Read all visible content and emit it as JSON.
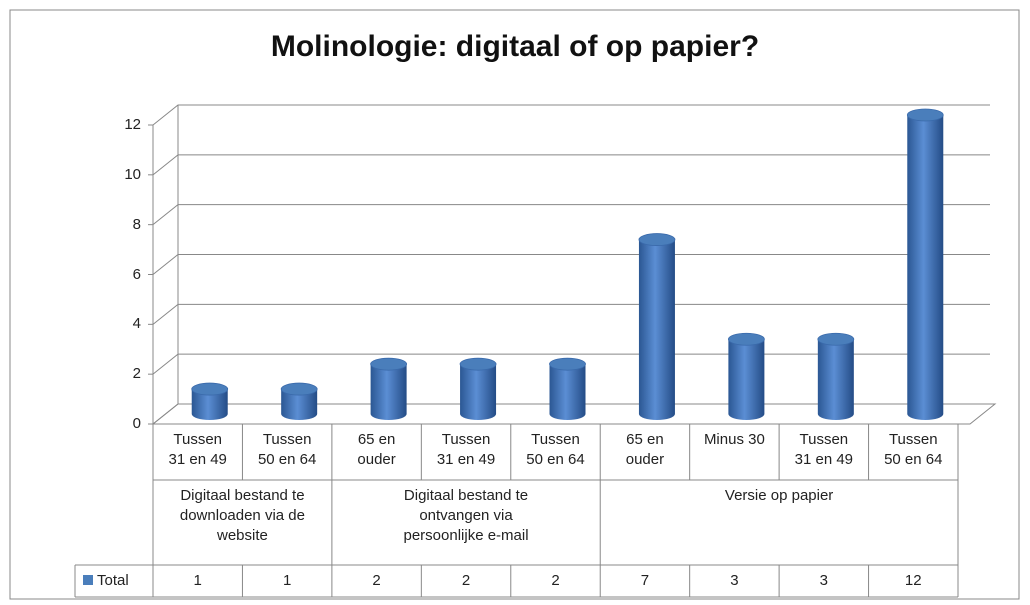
{
  "chart_data": {
    "type": "bar3d",
    "title": "Molinologie: digitaal of op papier?",
    "groups": [
      {
        "name": "Digitaal bestand te downloaden via de website",
        "categories": [
          "Tussen 31 en 49",
          "Tussen 50 en 64"
        ]
      },
      {
        "name": "Digitaal bestand te ontvangen via persoonlijke e-mail",
        "categories": [
          "65 en ouder",
          "Tussen 31 en 49",
          "Tussen 50 en 64"
        ]
      },
      {
        "name": "Versie op papier",
        "categories": [
          "65 en ouder",
          "Minus 30",
          "Tussen 31 en 49",
          "Tussen 50 en 64"
        ]
      }
    ],
    "series": [
      {
        "name": "Total",
        "color": "#4a7ebb",
        "values": [
          1,
          1,
          2,
          2,
          2,
          7,
          3,
          3,
          12
        ]
      }
    ],
    "ylim": [
      0,
      12
    ],
    "yticks": [
      0,
      2,
      4,
      6,
      8,
      10,
      12
    ],
    "grid": true,
    "data_table": true
  }
}
